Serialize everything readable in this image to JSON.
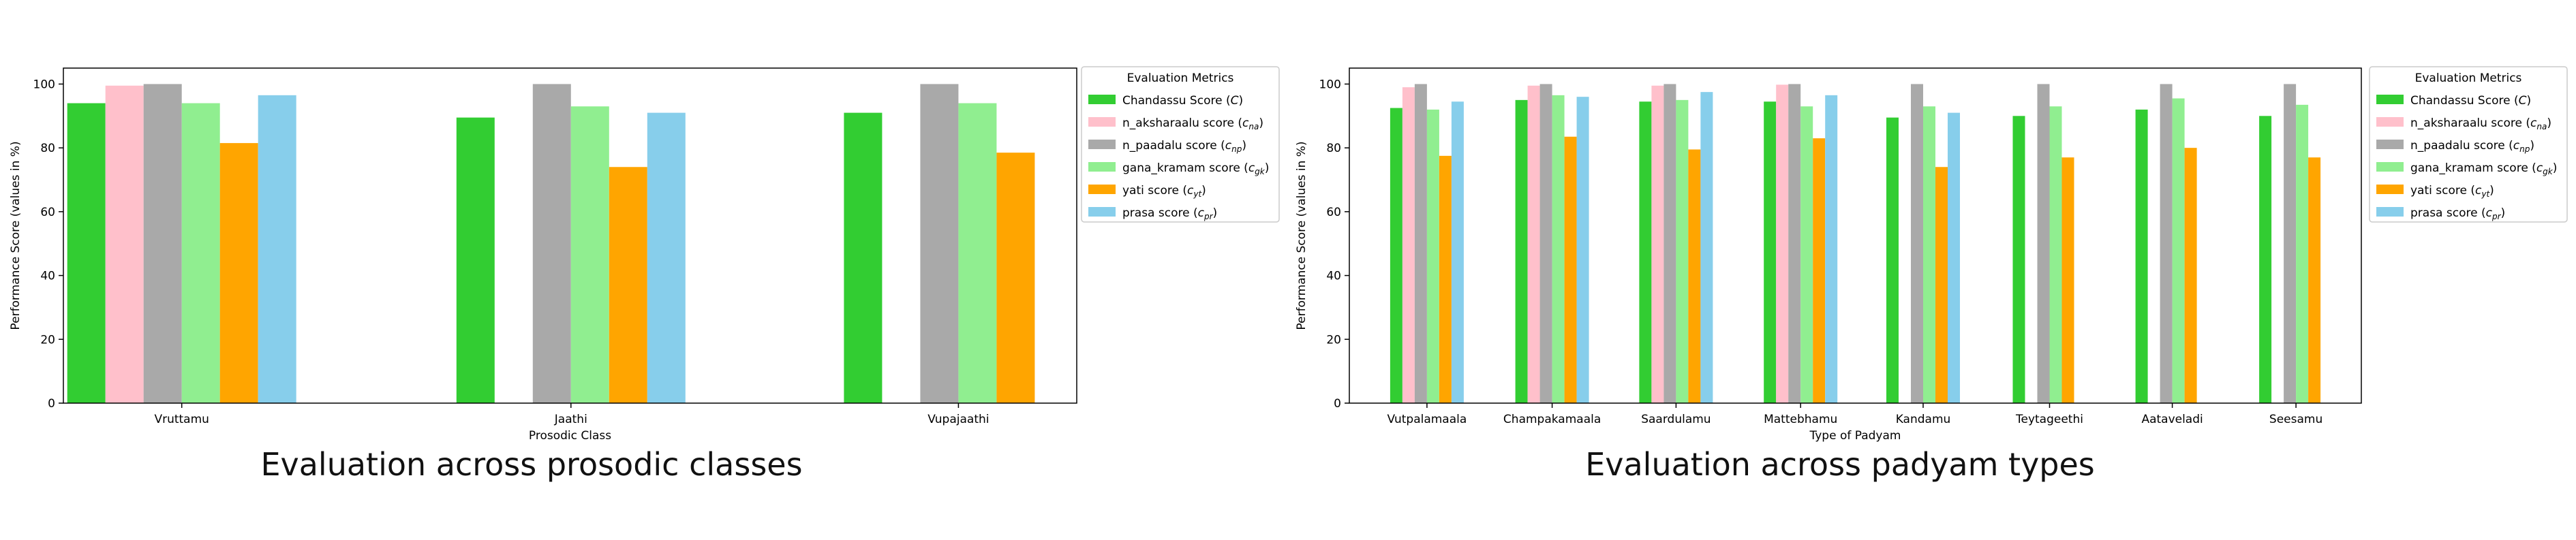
{
  "captions": {
    "left": "Evaluation across prosodic classes",
    "right": "Evaluation across padyam types"
  },
  "legend": {
    "title": "Evaluation Metrics"
  },
  "chart_data": [
    {
      "type": "bar",
      "xlabel": "Prosodic Class",
      "ylabel": "Performance Score (values in %)",
      "ylim": [
        0,
        105
      ],
      "yticks": [
        0,
        20,
        40,
        60,
        80,
        100
      ],
      "grid": false,
      "legend_placement": "outside right, top",
      "categories": [
        "Vruttamu",
        "Jaathi",
        "Vupajaathi"
      ],
      "series": [
        {
          "name": "Chandassu Score",
          "sym": "C",
          "sub": "",
          "color": "#32cd32",
          "values": [
            94,
            89.5,
            91
          ]
        },
        {
          "name": "n_aksharaalu score",
          "sym": "c",
          "sub": "na",
          "color": "#ffc0cb",
          "values": [
            99.5,
            null,
            null
          ]
        },
        {
          "name": "n_paadalu score",
          "sym": "c",
          "sub": "np",
          "color": "#a9a9a9",
          "values": [
            100,
            100,
            100
          ]
        },
        {
          "name": "gana_kramam score",
          "sym": "c",
          "sub": "gk",
          "color": "#90ee90",
          "values": [
            94,
            93,
            94
          ]
        },
        {
          "name": "yati score",
          "sym": "c",
          "sub": "yt",
          "color": "#ffa500",
          "values": [
            81.5,
            74,
            78.5
          ]
        },
        {
          "name": "prasa score",
          "sym": "c",
          "sub": "pr",
          "color": "#87ceeb",
          "values": [
            96.5,
            91,
            null
          ]
        }
      ]
    },
    {
      "type": "bar",
      "xlabel": "Type of Padyam",
      "ylabel": "Performance Score (values in %)",
      "ylim": [
        0,
        105
      ],
      "yticks": [
        0,
        20,
        40,
        60,
        80,
        100
      ],
      "grid": false,
      "legend_placement": "outside right, top",
      "categories": [
        "Vutpalamaala",
        "Champakamaala",
        "Saardulamu",
        "Mattebhamu",
        "Kandamu",
        "Teytageethi",
        "Aataveladi",
        "Seesamu"
      ],
      "series": [
        {
          "name": "Chandassu Score",
          "sym": "C",
          "sub": "",
          "color": "#32cd32",
          "values": [
            92.5,
            95,
            94.5,
            94.5,
            89.5,
            90,
            92,
            90
          ]
        },
        {
          "name": "n_aksharaalu score",
          "sym": "c",
          "sub": "na",
          "color": "#ffc0cb",
          "values": [
            99,
            99.5,
            99.5,
            99.8,
            null,
            null,
            null,
            null
          ]
        },
        {
          "name": "n_paadalu score",
          "sym": "c",
          "sub": "np",
          "color": "#a9a9a9",
          "values": [
            100,
            100,
            100,
            100,
            100,
            100,
            100,
            100
          ]
        },
        {
          "name": "gana_kramam score",
          "sym": "c",
          "sub": "gk",
          "color": "#90ee90",
          "values": [
            92,
            96.5,
            95,
            93,
            93,
            93,
            95.5,
            93.5
          ]
        },
        {
          "name": "yati score",
          "sym": "c",
          "sub": "yt",
          "color": "#ffa500",
          "values": [
            77.5,
            83.5,
            79.5,
            83,
            74,
            77,
            80,
            77
          ]
        },
        {
          "name": "prasa score",
          "sym": "c",
          "sub": "pr",
          "color": "#87ceeb",
          "values": [
            94.5,
            96,
            97.5,
            96.5,
            91,
            null,
            null,
            null
          ]
        }
      ]
    }
  ]
}
